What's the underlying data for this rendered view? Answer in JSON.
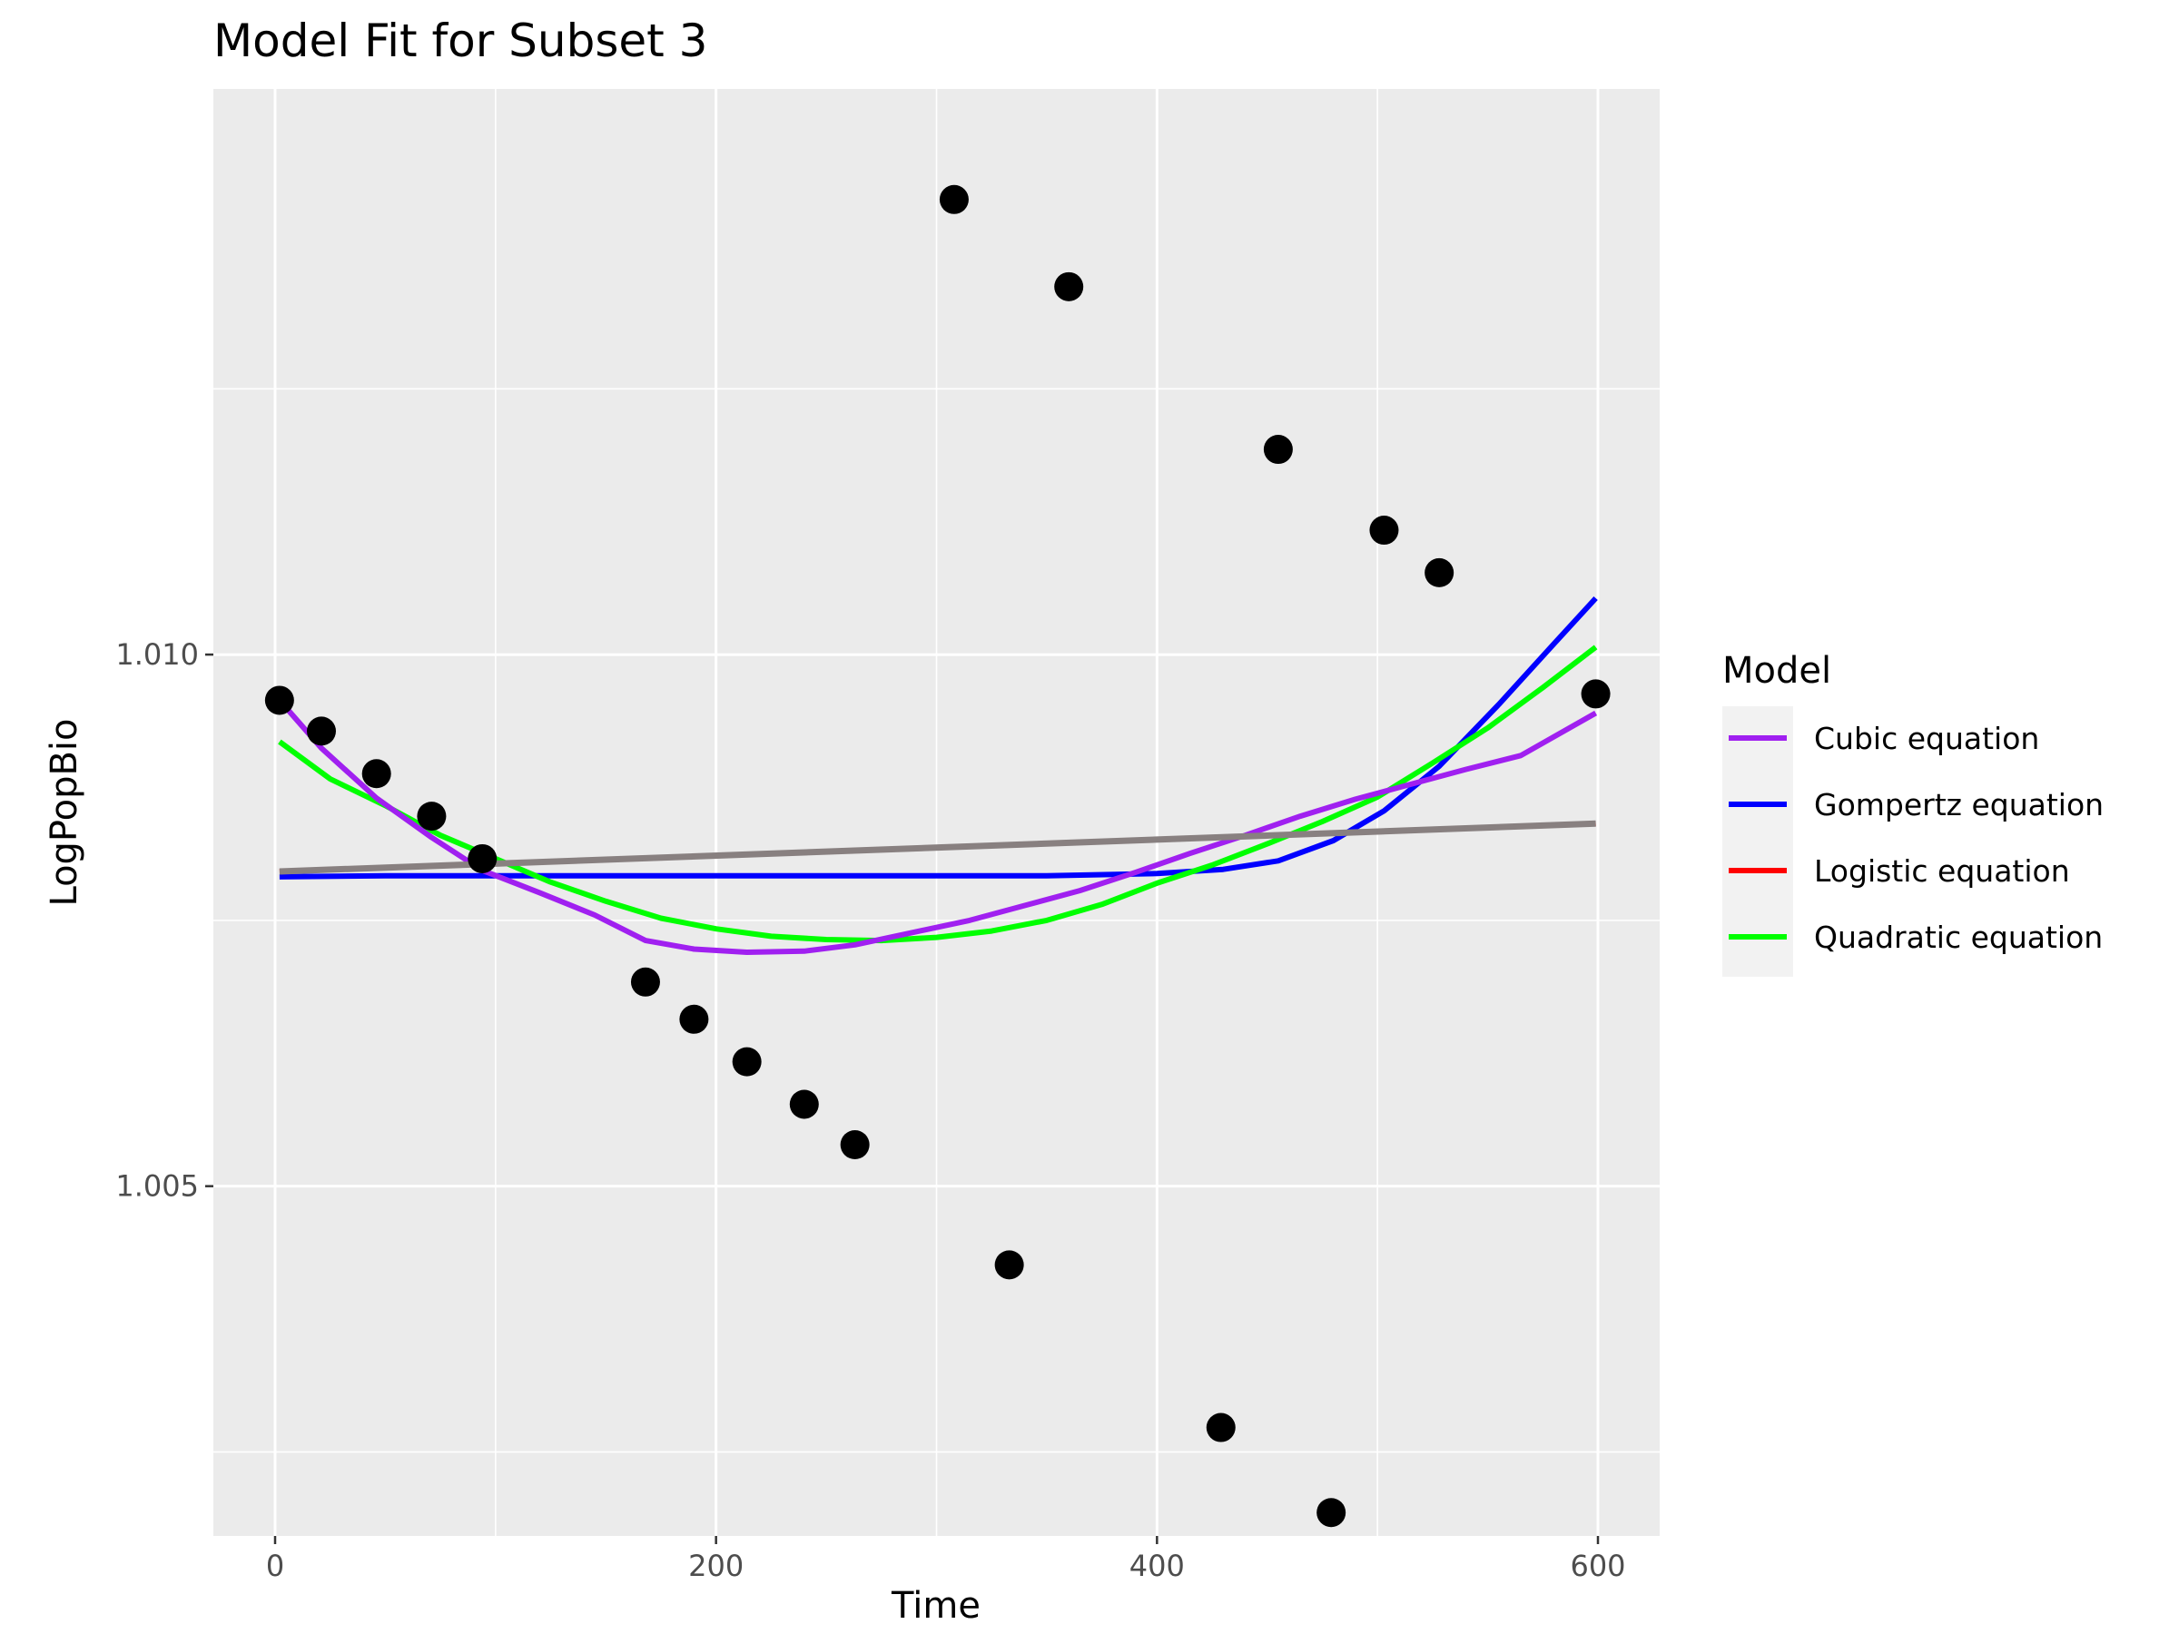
{
  "chart_data": {
    "type": "scatter",
    "title": "Model Fit for Subset 3",
    "xlabel": "Time",
    "ylabel": "LogPopBio",
    "xlim": [
      -28,
      628
    ],
    "ylim": [
      1.00171,
      1.01532
    ],
    "x_ticks": [
      0,
      200,
      400,
      600
    ],
    "x_tick_labels": [
      "0",
      "200",
      "400",
      "600"
    ],
    "y_ticks": [
      1.005,
      1.01
    ],
    "y_tick_labels": [
      "1.005",
      "1.010"
    ],
    "grid": true,
    "legend_title": "Model",
    "legend_position": "right",
    "points": [
      {
        "x": 2,
        "y": 1.00957
      },
      {
        "x": 21,
        "y": 1.00928
      },
      {
        "x": 46,
        "y": 1.00888
      },
      {
        "x": 71,
        "y": 1.00848
      },
      {
        "x": 94,
        "y": 1.00808
      },
      {
        "x": 168,
        "y": 1.00692
      },
      {
        "x": 190,
        "y": 1.00657
      },
      {
        "x": 214,
        "y": 1.00617
      },
      {
        "x": 240,
        "y": 1.00577
      },
      {
        "x": 263,
        "y": 1.00539
      },
      {
        "x": 308,
        "y": 1.01428
      },
      {
        "x": 333,
        "y": 1.00426
      },
      {
        "x": 360,
        "y": 1.01346
      },
      {
        "x": 429,
        "y": 1.00273
      },
      {
        "x": 455,
        "y": 1.01193
      },
      {
        "x": 479,
        "y": 1.00193
      },
      {
        "x": 503,
        "y": 1.01117
      },
      {
        "x": 528,
        "y": 1.01077
      },
      {
        "x": 599,
        "y": 1.00963
      }
    ],
    "series": [
      {
        "name": "Cubic equation",
        "color": "#a020f0",
        "x": [
          2,
          21,
          46,
          71,
          94,
          120,
          145,
          168,
          190,
          214,
          240,
          263,
          290,
          315,
          340,
          365,
          390,
          415,
          440,
          465,
          490,
          515,
          540,
          565,
          599
        ],
        "y": [
          1.00957,
          1.00912,
          1.00865,
          1.00828,
          1.00797,
          1.00776,
          1.00755,
          1.00731,
          1.00723,
          1.0072,
          1.00721,
          1.00727,
          1.00739,
          1.0075,
          1.00764,
          1.00778,
          1.00795,
          1.00813,
          1.0083,
          1.00848,
          1.00864,
          1.00878,
          1.00892,
          1.00905,
          1.00945
        ]
      },
      {
        "name": "Gompertz equation",
        "color": "#0000ff",
        "x": [
          2,
          50,
          100,
          150,
          200,
          250,
          300,
          350,
          400,
          430,
          455,
          480,
          503,
          528,
          555,
          580,
          599
        ],
        "y": [
          1.00791,
          1.00792,
          1.00792,
          1.00792,
          1.00792,
          1.00792,
          1.00792,
          1.00792,
          1.00794,
          1.00798,
          1.00806,
          1.00825,
          1.00853,
          1.00895,
          1.00953,
          1.0101,
          1.01053
        ]
      },
      {
        "name": "Logistic equation",
        "color": "#ff0000",
        "x": [
          2,
          599
        ],
        "y": [
          1.00796,
          1.00841
        ]
      },
      {
        "name": "Quadratic equation",
        "color": "#00ff00",
        "x": [
          2,
          25,
          50,
          75,
          100,
          125,
          150,
          175,
          200,
          225,
          250,
          275,
          300,
          325,
          350,
          375,
          400,
          425,
          450,
          475,
          500,
          525,
          550,
          575,
          599
        ],
        "y": [
          1.00918,
          1.00883,
          1.00858,
          1.0083,
          1.00808,
          1.00786,
          1.00768,
          1.00752,
          1.00742,
          1.00735,
          1.00732,
          1.00731,
          1.00734,
          1.0074,
          1.0075,
          1.00765,
          1.00785,
          1.00802,
          1.00822,
          1.00843,
          1.00866,
          1.00898,
          1.00931,
          1.00969,
          1.01007
        ]
      }
    ],
    "reference_line": {
      "color": "#888080",
      "x": [
        2,
        599
      ],
      "y": [
        1.00796,
        1.00841
      ]
    }
  }
}
